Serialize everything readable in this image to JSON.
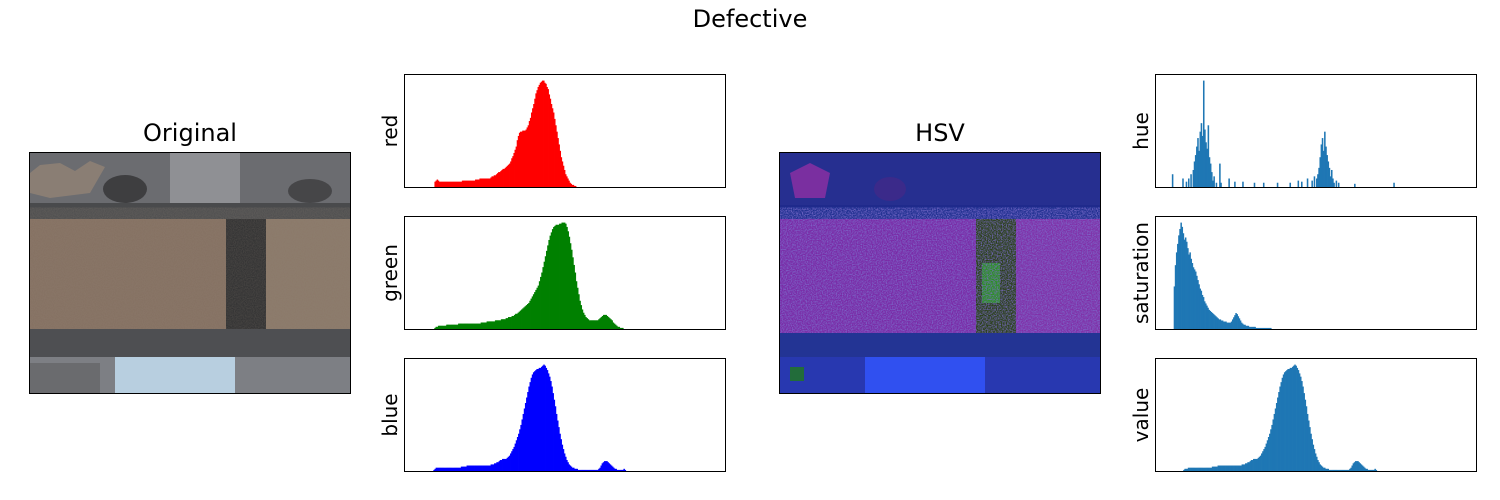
{
  "figure": {
    "title": "Defective"
  },
  "panels": {
    "original_title": "Original",
    "hsv_title": "HSV"
  },
  "chart_data": [
    {
      "type": "bar",
      "name": "red",
      "ylabel": "red",
      "color": "#ff0000",
      "x_range": [
        0,
        255
      ],
      "values": [
        0,
        0,
        0,
        0,
        0,
        0,
        0,
        0,
        0,
        0,
        0,
        0,
        0,
        0,
        0,
        0,
        0,
        0,
        0,
        0,
        0,
        0,
        0,
        0,
        0,
        5,
        6,
        7,
        6,
        5,
        5,
        5,
        5,
        5,
        5,
        5,
        5,
        5,
        5,
        5,
        5,
        5,
        5,
        5,
        5,
        5,
        5,
        5,
        5,
        5,
        6,
        6,
        6,
        6,
        6,
        6,
        6,
        6,
        6,
        6,
        6,
        6,
        7,
        7,
        7,
        7,
        8,
        8,
        8,
        8,
        8,
        8,
        8,
        8,
        8,
        8,
        9,
        10,
        10,
        11,
        11,
        12,
        13,
        14,
        14,
        15,
        16,
        17,
        17,
        18,
        19,
        20,
        21,
        22,
        24,
        27,
        29,
        32,
        35,
        38,
        44,
        48,
        51,
        52,
        52,
        53,
        53,
        53,
        54,
        56,
        58,
        62,
        65,
        70,
        74,
        78,
        83,
        88,
        91,
        94,
        96,
        98,
        99,
        100,
        100,
        98,
        97,
        94,
        92,
        87,
        83,
        78,
        74,
        70,
        64,
        58,
        52,
        46,
        40,
        34,
        28,
        24,
        20,
        16,
        12,
        10,
        8,
        6,
        4,
        3,
        2,
        2,
        1,
        1,
        0,
        0,
        0,
        0,
        0,
        0,
        0,
        0,
        0,
        0,
        0,
        0,
        0,
        0,
        0,
        0,
        0,
        0,
        0,
        0,
        0,
        0,
        0,
        0,
        0,
        0,
        0,
        0,
        0,
        0,
        0,
        0,
        0,
        0,
        0,
        0,
        0,
        0,
        0,
        0,
        0,
        0,
        0,
        0,
        0,
        0,
        0,
        0,
        0,
        0,
        0,
        0,
        0,
        0,
        0,
        0,
        0,
        0,
        0,
        0,
        0,
        0,
        0,
        0,
        0,
        0,
        0,
        0,
        0,
        0,
        0,
        0,
        0,
        0,
        0,
        0,
        0,
        0,
        0,
        0,
        0,
        0,
        0,
        0,
        0,
        0,
        0,
        0,
        0,
        0,
        0,
        0,
        0,
        0,
        0,
        0,
        0,
        0,
        0,
        0,
        0,
        0,
        0,
        0,
        0,
        0,
        0,
        0,
        0,
        0,
        0,
        0,
        0,
        0,
        0,
        0,
        0,
        0,
        0,
        0,
        0,
        0,
        0,
        0,
        0,
        0,
        0,
        0,
        0,
        0,
        0,
        0,
        0,
        0
      ]
    },
    {
      "type": "bar",
      "name": "green",
      "ylabel": "green",
      "color": "#008000",
      "x_range": [
        0,
        255
      ],
      "values": [
        0,
        0,
        0,
        0,
        0,
        0,
        0,
        0,
        0,
        0,
        0,
        0,
        0,
        0,
        0,
        0,
        0,
        0,
        0,
        0,
        0,
        0,
        0,
        1,
        2,
        2,
        3,
        3,
        3,
        3,
        3,
        3,
        3,
        4,
        4,
        4,
        4,
        4,
        4,
        4,
        4,
        4,
        4,
        5,
        5,
        5,
        5,
        5,
        5,
        5,
        5,
        5,
        5,
        5,
        5,
        5,
        5,
        5,
        5,
        5,
        5,
        5,
        6,
        6,
        6,
        6,
        6,
        7,
        7,
        7,
        7,
        7,
        7,
        7,
        8,
        8,
        8,
        8,
        8,
        9,
        9,
        9,
        9,
        10,
        10,
        11,
        11,
        11,
        12,
        12,
        13,
        14,
        14,
        15,
        16,
        17,
        18,
        19,
        20,
        21,
        22,
        23,
        24,
        26,
        28,
        30,
        32,
        34,
        36,
        38,
        40,
        44,
        48,
        52,
        57,
        62,
        67,
        72,
        77,
        82,
        86,
        89,
        92,
        94,
        95,
        96,
        96,
        96,
        97,
        97,
        98,
        98,
        98,
        97,
        94,
        90,
        85,
        79,
        73,
        66,
        59,
        52,
        44,
        38,
        32,
        26,
        22,
        18,
        15,
        13,
        11,
        10,
        9,
        8,
        8,
        8,
        8,
        8,
        8,
        8,
        8,
        9,
        10,
        11,
        12,
        13,
        13,
        13,
        12,
        11,
        10,
        9,
        8,
        6,
        5,
        4,
        3,
        2,
        2,
        1,
        1,
        1,
        0,
        0,
        0,
        0,
        0,
        0,
        0,
        0,
        0,
        0,
        0,
        0,
        0,
        0,
        0,
        0,
        0,
        0,
        0,
        0,
        0,
        0,
        0,
        0,
        0,
        0,
        0,
        0,
        0,
        0,
        0,
        0,
        0,
        0,
        0,
        0,
        0,
        0,
        0,
        0,
        0,
        0,
        0,
        0,
        0,
        0,
        0,
        0,
        0,
        0,
        0,
        0,
        0,
        0,
        0,
        0,
        0,
        0,
        0,
        0,
        0,
        0,
        0,
        0,
        0,
        0,
        0,
        0,
        0,
        0,
        0,
        0,
        0,
        0,
        0,
        0,
        0,
        0,
        0,
        0,
        0,
        0,
        0,
        0
      ]
    },
    {
      "type": "bar",
      "name": "blue",
      "ylabel": "blue",
      "color": "#0000ff",
      "x_range": [
        0,
        255
      ],
      "values": [
        0,
        0,
        0,
        0,
        0,
        0,
        0,
        0,
        0,
        0,
        0,
        0,
        0,
        0,
        0,
        0,
        0,
        0,
        0,
        0,
        0,
        0,
        0,
        1,
        2,
        3,
        3,
        3,
        3,
        3,
        3,
        3,
        3,
        3,
        3,
        3,
        3,
        3,
        3,
        3,
        3,
        3,
        3,
        3,
        3,
        3,
        3,
        4,
        4,
        4,
        4,
        4,
        5,
        5,
        5,
        5,
        5,
        5,
        5,
        5,
        5,
        5,
        5,
        5,
        5,
        5,
        5,
        5,
        5,
        5,
        5,
        5,
        5,
        6,
        6,
        6,
        7,
        7,
        8,
        8,
        9,
        10,
        10,
        11,
        11,
        11,
        11,
        12,
        13,
        14,
        16,
        18,
        20,
        22,
        25,
        28,
        31,
        34,
        38,
        42,
        47,
        52,
        57,
        62,
        67,
        72,
        77,
        81,
        85,
        88,
        90,
        91,
        92,
        93,
        93,
        94,
        94,
        95,
        96,
        97,
        96,
        94,
        92,
        89,
        86,
        82,
        77,
        71,
        65,
        59,
        52,
        46,
        40,
        34,
        29,
        24,
        20,
        16,
        13,
        10,
        8,
        6,
        5,
        4,
        3,
        3,
        2,
        2,
        2,
        1,
        1,
        1,
        1,
        1,
        1,
        1,
        1,
        1,
        1,
        1,
        1,
        1,
        1,
        1,
        1,
        1,
        1,
        2,
        3,
        5,
        7,
        8,
        9,
        9,
        9,
        8,
        7,
        6,
        5,
        4,
        3,
        2,
        2,
        1,
        1,
        1,
        1,
        1,
        1,
        2,
        1,
        0,
        0,
        0,
        0,
        0,
        0,
        0,
        0,
        0,
        0,
        0,
        0,
        0,
        0,
        0,
        0,
        0,
        0,
        0,
        0,
        0,
        0,
        0,
        0,
        0,
        0,
        0,
        0,
        0,
        0,
        0,
        0,
        0,
        0,
        0,
        0,
        0,
        0,
        0,
        0,
        0,
        0,
        0,
        0,
        0,
        0,
        0,
        0,
        0,
        0,
        0,
        0,
        0,
        0,
        0,
        0,
        0,
        0,
        0,
        0,
        0,
        0,
        0,
        0,
        0,
        0,
        0,
        0,
        0,
        0,
        0,
        0,
        0,
        0,
        0,
        0,
        0,
        0,
        0,
        0,
        0,
        0,
        0,
        0,
        0
      ]
    },
    {
      "type": "bar",
      "name": "hue",
      "ylabel": "hue",
      "color": "#1f77b4",
      "x_range": [
        0,
        255
      ],
      "values": [
        0,
        0,
        0,
        0,
        0,
        0,
        0,
        0,
        0,
        0,
        0,
        0,
        12,
        0,
        0,
        0,
        0,
        0,
        0,
        0,
        0,
        8,
        0,
        0,
        5,
        0,
        8,
        0,
        12,
        0,
        16,
        24,
        30,
        38,
        46,
        34,
        52,
        60,
        48,
        100,
        54,
        42,
        36,
        58,
        28,
        22,
        14,
        6,
        10,
        0,
        4,
        0,
        0,
        22,
        4,
        0,
        0,
        0,
        0,
        0,
        0,
        8,
        0,
        0,
        0,
        0,
        5,
        0,
        0,
        0,
        0,
        0,
        0,
        5,
        0,
        0,
        0,
        0,
        0,
        0,
        0,
        0,
        0,
        4,
        0,
        0,
        0,
        0,
        0,
        0,
        0,
        4,
        0,
        0,
        0,
        0,
        0,
        0,
        0,
        0,
        0,
        0,
        0,
        4,
        0,
        0,
        0,
        0,
        0,
        0,
        0,
        0,
        0,
        0,
        4,
        0,
        0,
        0,
        0,
        0,
        0,
        6,
        0,
        0,
        5,
        0,
        0,
        0,
        0,
        8,
        0,
        0,
        0,
        6,
        0,
        10,
        0,
        8,
        12,
        18,
        28,
        40,
        46,
        34,
        52,
        38,
        30,
        24,
        18,
        10,
        16,
        8,
        4,
        0,
        6,
        0,
        4,
        0,
        0,
        0,
        0,
        0,
        0,
        0,
        0,
        0,
        0,
        0,
        0,
        0,
        3,
        0,
        0,
        0,
        0,
        0,
        0,
        0,
        0,
        0,
        0,
        0,
        0,
        0,
        0,
        0,
        0,
        0,
        0,
        0,
        0,
        0,
        0,
        0,
        0,
        0,
        0,
        0,
        0,
        0,
        0,
        0,
        0,
        0,
        4,
        0,
        0,
        0,
        0,
        0,
        0,
        0,
        0,
        0,
        0,
        0,
        0,
        0,
        0,
        0,
        0,
        0,
        0,
        0,
        0,
        0,
        0,
        0,
        0,
        0,
        0,
        0,
        0,
        0,
        0,
        0,
        0,
        0,
        0,
        0,
        0,
        0,
        0,
        0,
        0,
        0,
        0,
        0,
        0,
        0,
        0,
        0,
        0,
        0,
        0,
        0,
        0,
        0,
        0,
        0,
        0,
        0,
        0,
        0,
        0,
        0,
        0,
        0,
        0,
        0,
        0,
        0,
        0,
        0
      ]
    },
    {
      "type": "bar",
      "name": "saturation",
      "ylabel": "saturation",
      "color": "#1f77b4",
      "x_range": [
        0,
        255
      ],
      "values": [
        0,
        0,
        0,
        0,
        0,
        0,
        0,
        0,
        0,
        0,
        0,
        0,
        0,
        0,
        40,
        60,
        72,
        80,
        88,
        94,
        100,
        96,
        90,
        84,
        86,
        82,
        76,
        70,
        72,
        66,
        62,
        58,
        56,
        54,
        50,
        46,
        42,
        38,
        36,
        32,
        30,
        26,
        24,
        22,
        20,
        18,
        17,
        16,
        15,
        14,
        13,
        12,
        11,
        10,
        9,
        9,
        8,
        8,
        7,
        7,
        7,
        6,
        6,
        6,
        6,
        7,
        9,
        11,
        13,
        15,
        14,
        12,
        10,
        8,
        6,
        5,
        4,
        4,
        3,
        3,
        3,
        2,
        2,
        2,
        2,
        2,
        2,
        1,
        1,
        1,
        1,
        1,
        1,
        1,
        1,
        1,
        1,
        1,
        1,
        1,
        1,
        0,
        0,
        0,
        0,
        0,
        0,
        0,
        0,
        0,
        0,
        0,
        0,
        0,
        0,
        0,
        0,
        0,
        0,
        0,
        0,
        0,
        0,
        0,
        0,
        0,
        0,
        0,
        0,
        0,
        0,
        0,
        0,
        0,
        0,
        0,
        0,
        0,
        0,
        0,
        0,
        0,
        0,
        0,
        0,
        0,
        0,
        0,
        0,
        0,
        0,
        0,
        0,
        0,
        0,
        0,
        0,
        0,
        0,
        0,
        0,
        0,
        0,
        0,
        0,
        0,
        0,
        0,
        0,
        0,
        0,
        0,
        0,
        0,
        0,
        0,
        0,
        0,
        0,
        0,
        0,
        0,
        0,
        0,
        0,
        0,
        0,
        0,
        0,
        0,
        0,
        0,
        0,
        0,
        0,
        0,
        0,
        0,
        0,
        0,
        0,
        0,
        0,
        0,
        0,
        0,
        0,
        0,
        0,
        0,
        0,
        0,
        0,
        0,
        0,
        0,
        0,
        0,
        0,
        0,
        0,
        0,
        0,
        0,
        0,
        0,
        0,
        0,
        0,
        0,
        0,
        0,
        0,
        0,
        0,
        0,
        0,
        0,
        0,
        0,
        0,
        0,
        0,
        0,
        0,
        0,
        0,
        0,
        0,
        0,
        0,
        0,
        0,
        0,
        0,
        0,
        0,
        0,
        0,
        0,
        0,
        0,
        0,
        0,
        0,
        0,
        0,
        0,
        0,
        0,
        0,
        0,
        0,
        0,
        0,
        0,
        0,
        0,
        0,
        0,
        0,
        0
      ]
    },
    {
      "type": "bar",
      "name": "value",
      "ylabel": "value",
      "color": "#1f77b4",
      "x_range": [
        0,
        255
      ],
      "values": [
        0,
        0,
        0,
        0,
        0,
        0,
        0,
        0,
        0,
        0,
        0,
        0,
        0,
        0,
        0,
        0,
        0,
        0,
        0,
        0,
        0,
        0,
        1,
        2,
        2,
        2,
        3,
        3,
        3,
        3,
        3,
        3,
        3,
        3,
        3,
        3,
        3,
        3,
        3,
        3,
        3,
        3,
        3,
        3,
        3,
        3,
        3,
        4,
        4,
        4,
        4,
        4,
        5,
        5,
        5,
        5,
        5,
        5,
        5,
        5,
        5,
        5,
        5,
        5,
        5,
        5,
        5,
        5,
        5,
        5,
        5,
        5,
        5,
        6,
        6,
        6,
        7,
        7,
        8,
        8,
        9,
        10,
        10,
        11,
        11,
        11,
        11,
        12,
        13,
        14,
        16,
        18,
        20,
        22,
        25,
        28,
        31,
        34,
        38,
        42,
        47,
        52,
        57,
        62,
        67,
        72,
        77,
        81,
        85,
        88,
        90,
        91,
        92,
        93,
        93,
        94,
        94,
        95,
        96,
        97,
        96,
        94,
        92,
        89,
        86,
        82,
        77,
        71,
        65,
        59,
        52,
        46,
        40,
        34,
        29,
        24,
        20,
        16,
        13,
        10,
        8,
        6,
        5,
        4,
        3,
        3,
        2,
        2,
        2,
        1,
        1,
        1,
        1,
        1,
        1,
        1,
        1,
        1,
        1,
        1,
        1,
        1,
        1,
        1,
        1,
        1,
        1,
        2,
        3,
        5,
        7,
        8,
        9,
        9,
        9,
        8,
        7,
        6,
        5,
        4,
        3,
        2,
        2,
        1,
        1,
        1,
        1,
        1,
        1,
        2,
        1,
        0,
        0,
        0,
        0,
        0,
        0,
        0,
        0,
        0,
        0,
        0,
        0,
        0,
        0,
        0,
        0,
        0,
        0,
        0,
        0,
        0,
        0,
        0,
        0,
        0,
        0,
        0,
        0,
        0,
        0,
        0,
        0,
        0,
        0,
        0,
        0,
        0,
        0,
        0,
        0,
        0,
        0,
        0,
        0,
        0,
        0,
        0,
        0,
        0,
        0,
        0,
        0,
        0,
        0,
        0,
        0,
        0,
        0,
        0,
        0,
        0,
        0,
        0,
        0,
        0,
        0,
        0,
        0,
        0,
        0,
        0,
        0,
        0,
        0,
        0,
        0,
        0,
        0,
        0,
        0,
        0,
        0,
        0,
        0,
        0
      ]
    }
  ]
}
